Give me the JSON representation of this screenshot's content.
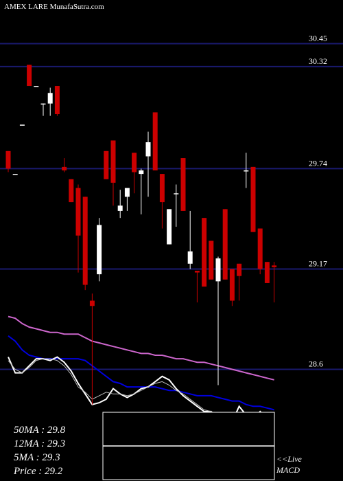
{
  "header": "AMEX  LARE MunafaSutra.com",
  "stats": {
    "ma50": "50MA : 29.8",
    "ma12": "12MA : 29.3",
    "ma5": "5MA : 29.3",
    "price": "Price   : 29.2"
  },
  "macd_label": "<<Live MACD",
  "colors": {
    "background": "#000000",
    "up": "#ffffff",
    "down": "#cc0000",
    "hline": "#1a1a6e",
    "ma_long": "#cc66cc",
    "ma_short": "#0000dd",
    "text": "#ffffff"
  },
  "chart_data": {
    "type": "candlestick",
    "price_levels": [
      30.45,
      30.32,
      29.74,
      29.17,
      28.6
    ],
    "ylim": [
      28.27,
      30.62
    ],
    "candles": [
      {
        "o": 29.84,
        "h": 29.84,
        "l": 29.72,
        "c": 29.74
      },
      {
        "o": 29.71,
        "h": 29.71,
        "l": 29.71,
        "c": 29.71
      },
      {
        "o": 29.99,
        "h": 29.99,
        "l": 29.99,
        "c": 29.99
      },
      {
        "o": 30.33,
        "h": 30.33,
        "l": 30.21,
        "c": 30.21
      },
      {
        "o": 30.21,
        "h": 30.21,
        "l": 30.21,
        "c": 30.21
      },
      {
        "o": 30.11,
        "h": 30.11,
        "l": 30.04,
        "c": 30.11
      },
      {
        "o": 30.11,
        "h": 30.2,
        "l": 30.04,
        "c": 30.17
      },
      {
        "o": 30.21,
        "h": 30.21,
        "l": 30.04,
        "c": 30.05
      },
      {
        "o": 29.75,
        "h": 29.8,
        "l": 29.72,
        "c": 29.73
      },
      {
        "o": 29.68,
        "h": 29.68,
        "l": 29.55,
        "c": 29.55
      },
      {
        "o": 29.63,
        "h": 29.65,
        "l": 29.15,
        "c": 29.36
      },
      {
        "o": 29.58,
        "h": 29.58,
        "l": 29.05,
        "c": 29.08
      },
      {
        "o": 28.99,
        "h": 29.03,
        "l": 28.4,
        "c": 28.96
      },
      {
        "o": 29.14,
        "h": 29.46,
        "l": 29.1,
        "c": 29.42
      },
      {
        "o": 29.84,
        "h": 29.84,
        "l": 29.68,
        "c": 29.68
      },
      {
        "o": 29.9,
        "h": 29.9,
        "l": 29.53,
        "c": 29.66
      },
      {
        "o": 29.5,
        "h": 29.62,
        "l": 29.46,
        "c": 29.53
      },
      {
        "o": 29.58,
        "h": 29.62,
        "l": 29.5,
        "c": 29.63
      },
      {
        "o": 29.83,
        "h": 29.83,
        "l": 29.6,
        "c": 29.72
      },
      {
        "o": 29.71,
        "h": 29.74,
        "l": 29.48,
        "c": 29.73
      },
      {
        "o": 29.81,
        "h": 29.95,
        "l": 29.58,
        "c": 29.89
      },
      {
        "o": 30.06,
        "h": 30.06,
        "l": 29.73,
        "c": 29.73
      },
      {
        "o": 29.71,
        "h": 29.71,
        "l": 29.4,
        "c": 29.55
      },
      {
        "o": 29.31,
        "h": 29.51,
        "l": 29.31,
        "c": 29.51
      },
      {
        "o": 29.6,
        "h": 29.65,
        "l": 29.41,
        "c": 29.6
      },
      {
        "o": 29.8,
        "h": 29.8,
        "l": 29.5,
        "c": 29.5
      },
      {
        "o": 29.2,
        "h": 29.5,
        "l": 29.17,
        "c": 29.27
      },
      {
        "o": 29.16,
        "h": 29.16,
        "l": 28.98,
        "c": 29.15
      },
      {
        "o": 29.46,
        "h": 29.46,
        "l": 29.07,
        "c": 29.07
      },
      {
        "o": 29.33,
        "h": 29.33,
        "l": 29.11,
        "c": 29.11
      },
      {
        "o": 29.1,
        "h": 29.24,
        "l": 28.51,
        "c": 29.23
      },
      {
        "o": 29.51,
        "h": 29.51,
        "l": 29.11,
        "c": 29.11
      },
      {
        "o": 29.17,
        "h": 29.17,
        "l": 28.96,
        "c": 28.99
      },
      {
        "o": 29.2,
        "h": 29.2,
        "l": 28.99,
        "c": 29.13
      },
      {
        "o": 29.73,
        "h": 29.83,
        "l": 29.63,
        "c": 29.73
      },
      {
        "o": 29.75,
        "h": 29.75,
        "l": 29.38,
        "c": 29.38
      },
      {
        "o": 29.4,
        "h": 29.4,
        "l": 29.14,
        "c": 29.17
      },
      {
        "o": 29.21,
        "h": 29.21,
        "l": 29.09,
        "c": 29.09
      },
      {
        "o": 29.19,
        "h": 29.21,
        "l": 28.98,
        "c": 29.18
      }
    ],
    "ma_long": [
      28.9,
      28.89,
      28.86,
      28.84,
      28.83,
      28.82,
      28.81,
      28.81,
      28.8,
      28.8,
      28.8,
      28.78,
      28.76,
      28.75,
      28.74,
      28.73,
      28.72,
      28.71,
      28.7,
      28.69,
      28.69,
      28.68,
      28.68,
      28.67,
      28.66,
      28.66,
      28.65,
      28.64,
      28.64,
      28.63,
      28.62,
      28.61,
      28.6,
      28.59,
      28.58,
      28.57,
      28.56,
      28.55,
      28.54
    ],
    "ma_short": [
      28.79,
      28.76,
      28.71,
      28.68,
      28.67,
      28.66,
      28.66,
      28.66,
      28.66,
      28.66,
      28.66,
      28.65,
      28.62,
      28.59,
      28.56,
      28.53,
      28.52,
      28.5,
      28.5,
      28.5,
      28.5,
      28.5,
      28.49,
      28.48,
      28.48,
      28.47,
      28.46,
      28.45,
      28.45,
      28.45,
      28.44,
      28.43,
      28.42,
      28.42,
      28.4,
      28.39,
      28.39,
      28.38,
      28.37
    ],
    "macd_line": [
      28.67,
      28.58,
      28.58,
      28.62,
      28.66,
      28.66,
      28.65,
      28.67,
      28.64,
      28.59,
      28.52,
      28.46,
      28.4,
      28.41,
      28.43,
      28.49,
      28.46,
      28.44,
      28.46,
      28.49,
      28.5,
      28.53,
      28.56,
      28.54,
      28.49,
      28.45,
      28.42,
      28.39,
      28.36,
      28.36,
      28.32,
      28.31,
      28.3,
      28.39,
      28.34,
      28.31,
      28.36,
      28.32,
      28.34
    ],
    "signal_line": [
      28.65,
      28.6,
      28.58,
      28.61,
      28.65,
      28.66,
      28.66,
      28.65,
      28.62,
      28.57,
      28.5,
      28.47,
      28.43,
      28.45,
      28.47,
      28.46,
      28.46,
      28.45,
      28.46,
      28.48,
      28.5,
      28.52,
      28.53,
      28.51,
      28.48,
      28.46,
      28.43,
      28.4,
      28.37,
      28.36,
      28.34,
      28.33,
      28.32,
      28.35,
      28.35,
      28.34,
      28.35,
      28.33,
      28.34
    ]
  }
}
